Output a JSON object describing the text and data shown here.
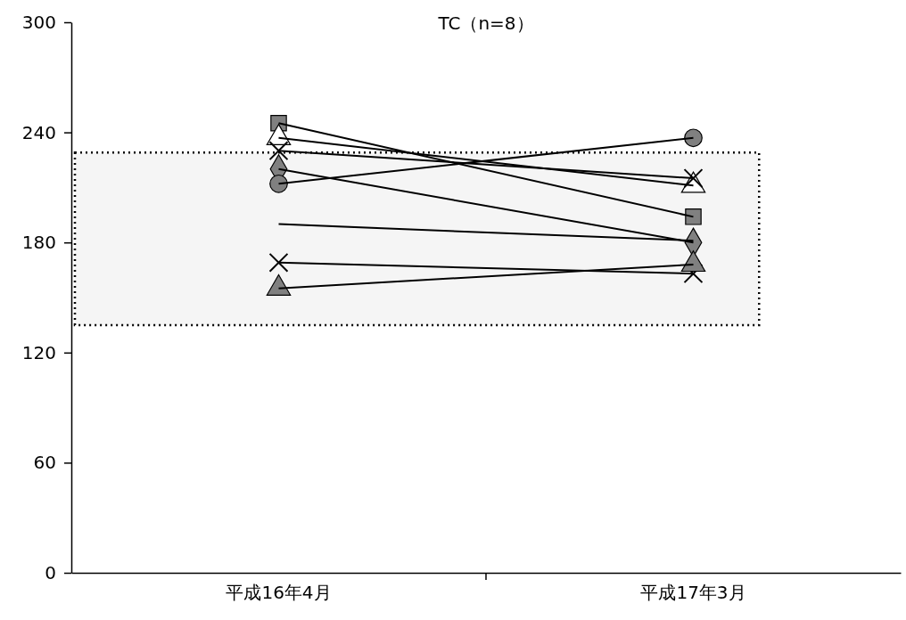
{
  "chart_data": {
    "type": "line",
    "title": "TC（n=8）",
    "categories": [
      "平成16年4月",
      "平成17年3月"
    ],
    "ylim": [
      0,
      300
    ],
    "yticks": [
      0,
      60,
      120,
      180,
      240,
      300
    ],
    "grid": false,
    "bands": [
      {
        "axis": "y",
        "from": 135,
        "to": 229,
        "color": "#000000"
      }
    ],
    "series": [
      {
        "color": "#808080",
        "marker": "square",
        "values": [
          245,
          194
        ]
      },
      {
        "color": "#ffffff",
        "marker": "triangle",
        "values": [
          237,
          211
        ]
      },
      {
        "color": "#000000",
        "marker": "cross",
        "values": [
          230,
          215
        ]
      },
      {
        "color": "#808080",
        "marker": "diamond",
        "values": [
          220,
          180
        ]
      },
      {
        "color": "#808080",
        "marker": "circle",
        "values": [
          212,
          237
        ]
      },
      {
        "color": "#000000",
        "marker": "none",
        "values": [
          190,
          181
        ]
      },
      {
        "color": "#000000",
        "marker": "cross",
        "values": [
          169,
          163
        ]
      },
      {
        "color": "#808080",
        "marker": "triangle",
        "values": [
          155,
          168
        ]
      }
    ]
  }
}
